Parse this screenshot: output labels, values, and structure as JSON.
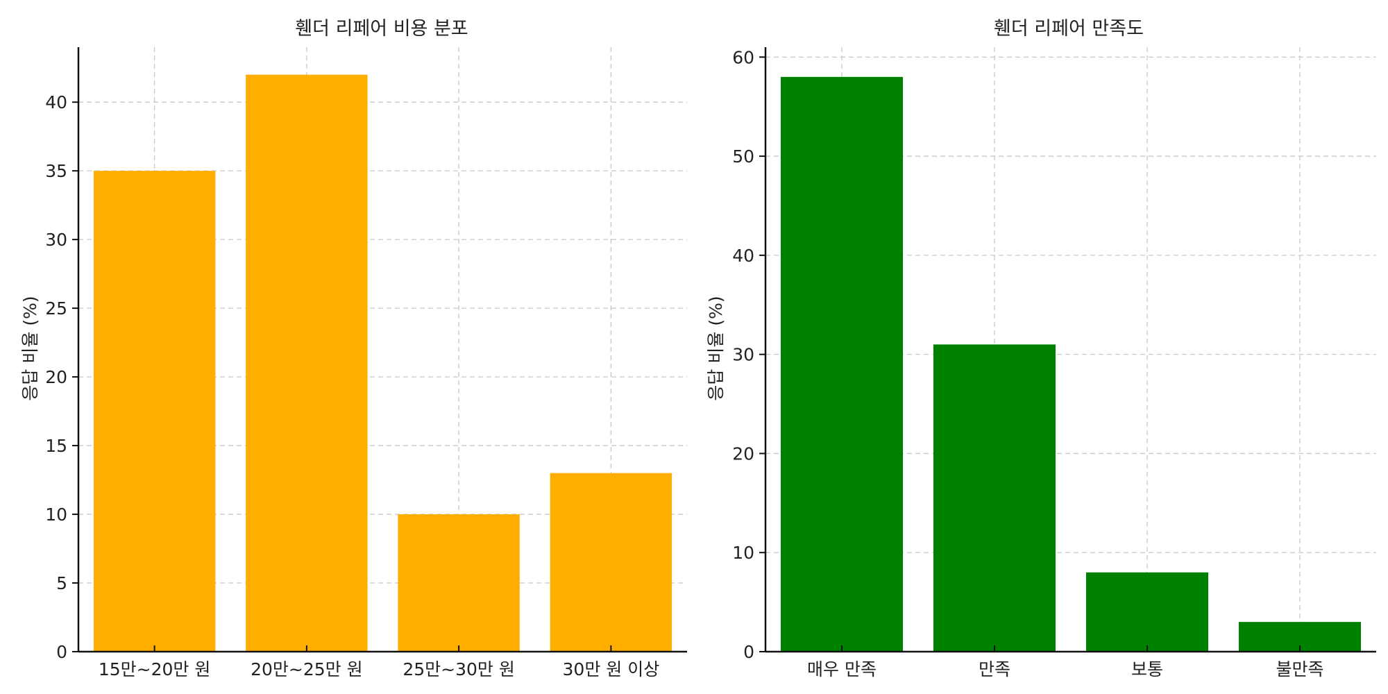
{
  "chart_data": [
    {
      "type": "bar",
      "title": "휀더 리페어 비용 분포",
      "xlabel": "",
      "ylabel": "응답 비율 (%)",
      "categories": [
        "15만~20만 원",
        "20만~25만 원",
        "25만~30만 원",
        "30만 원 이상"
      ],
      "values": [
        35,
        42,
        10,
        13
      ],
      "yticks": [
        0,
        5,
        10,
        15,
        20,
        25,
        30,
        35,
        40
      ],
      "ylim": [
        0,
        44
      ],
      "color": "#FFAE00",
      "grid": true
    },
    {
      "type": "bar",
      "title": "휀더 리페어 만족도",
      "xlabel": "",
      "ylabel": "응답 비율 (%)",
      "categories": [
        "매우 만족",
        "만족",
        "보통",
        "불만족"
      ],
      "values": [
        58,
        31,
        8,
        3
      ],
      "yticks": [
        0,
        10,
        20,
        30,
        40,
        50,
        60
      ],
      "ylim": [
        0,
        61
      ],
      "color": "#008000",
      "grid": true
    }
  ]
}
